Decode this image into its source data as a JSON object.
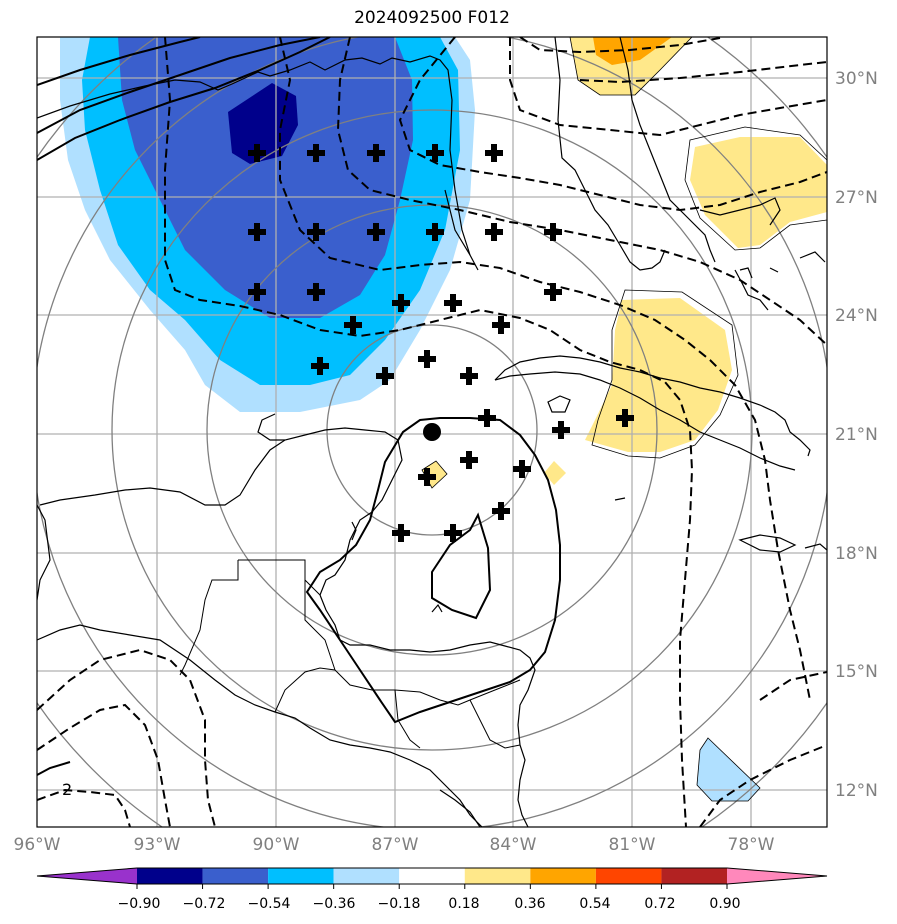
{
  "title": "2024092500 F012",
  "map": {
    "lon_labels": [
      "96°W",
      "93°W",
      "90°W",
      "87°W",
      "84°W",
      "81°W",
      "78°W"
    ],
    "lat_labels": [
      "30°N",
      "27°N",
      "24°N",
      "21°N",
      "18°N",
      "15°N",
      "12°N"
    ],
    "contour_label": "2"
  },
  "colorbar": {
    "tick_labels": [
      "−0.90",
      "−0.72",
      "−0.54",
      "−0.36",
      "−0.18",
      "0.18",
      "0.36",
      "0.54",
      "0.72",
      "0.90"
    ],
    "colors": [
      "#9932cc",
      "#00008b",
      "#3a5fcd",
      "#00bfff",
      "#b0e0ff",
      "#ffffff",
      "#ffe88a",
      "#ffa500",
      "#ff4500",
      "#b22222",
      "#ff88bb"
    ]
  },
  "symbols": {
    "center_marker": "filled-circle",
    "grid_marker": "plus"
  }
}
